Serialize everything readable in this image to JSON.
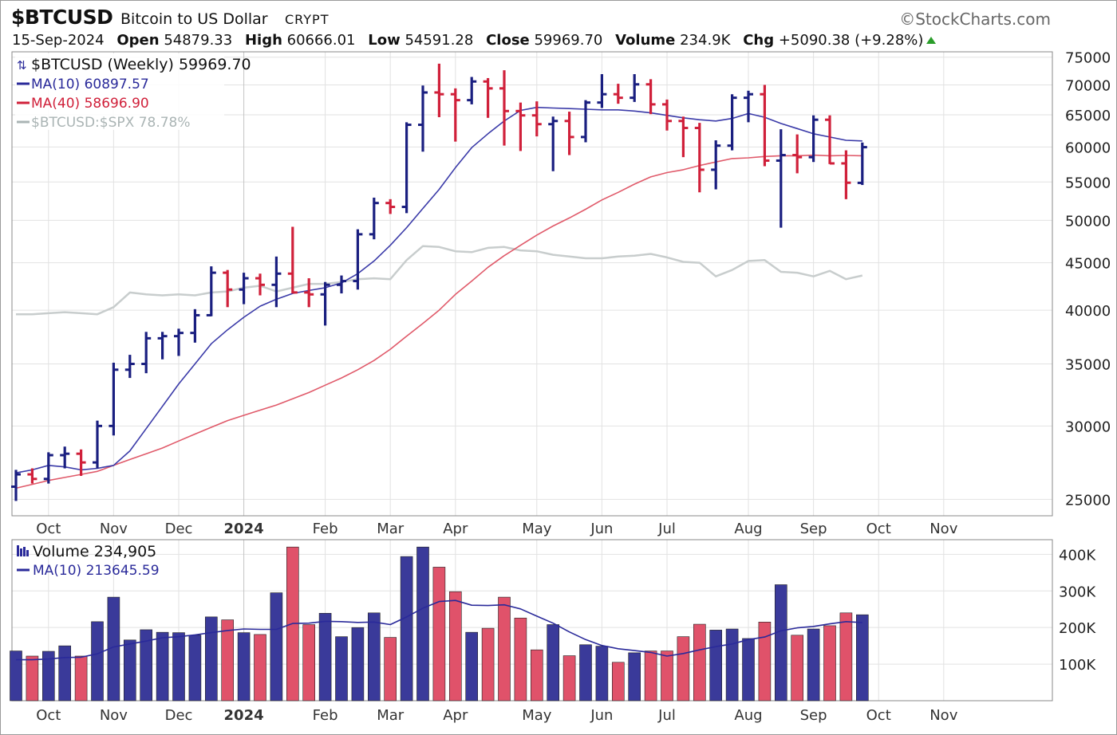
{
  "header": {
    "symbol": "$BTCUSD",
    "name": "Bitcoin to US Dollar",
    "exchange": "CRYPT",
    "brand": "©StockCharts.com",
    "date": "15-Sep-2024",
    "open_label": "Open",
    "open_value": "54879.33",
    "high_label": "High",
    "high_value": "60666.01",
    "low_label": "Low",
    "low_value": "54591.28",
    "close_label": "Close",
    "close_value": "59969.70",
    "volume_label": "Volume",
    "volume_value": "234.9K",
    "chg_label": "Chg",
    "chg_value": "+5090.38 (+9.28%)"
  },
  "colors": {
    "up": "#1a1f80",
    "down": "#d0203a",
    "ma10": "#3a3aa8",
    "ma40": "#e05a6a",
    "relative": "#c8cdcd",
    "vol_up": "#3a3a9a",
    "vol_down": "#e0526a",
    "grid": "#e2e2e2"
  },
  "chart_data": [
    {
      "type": "ohlc",
      "title": "$BTCUSD (Weekly) 59969.70",
      "price_scale": "log",
      "ylim": [
        24000,
        76000
      ],
      "yticks": [
        25000,
        30000,
        35000,
        40000,
        45000,
        50000,
        55000,
        60000,
        65000,
        70000,
        75000
      ],
      "grid": true,
      "legend_position": "top-left",
      "legend": [
        {
          "label": "$BTCUSD (Weekly) 59969.70",
          "color": "#111111"
        },
        {
          "label": "MA(10) 60897.57",
          "color": "#2a2a9a"
        },
        {
          "label": "MA(40) 58696.90",
          "color": "#d0203a"
        },
        {
          "label": "$BTCUSD:$SPX 78.78%",
          "color": "#aab4b4"
        }
      ],
      "x_labels": [
        {
          "label": "Oct",
          "week": 2
        },
        {
          "label": "Nov",
          "week": 6
        },
        {
          "label": "Dec",
          "week": 10
        },
        {
          "label": "2024",
          "week": 14,
          "bold": true
        },
        {
          "label": "Feb",
          "week": 19
        },
        {
          "label": "Mar",
          "week": 23
        },
        {
          "label": "Apr",
          "week": 27
        },
        {
          "label": "May",
          "week": 32
        },
        {
          "label": "Jun",
          "week": 36
        },
        {
          "label": "Jul",
          "week": 40
        },
        {
          "label": "Aug",
          "week": 45
        },
        {
          "label": "Sep",
          "week": 49
        },
        {
          "label": "Oct",
          "week": 53
        },
        {
          "label": "Nov",
          "week": 57
        }
      ],
      "ohlc": [
        [
          25800,
          26900,
          24900,
          26600
        ],
        [
          26600,
          27000,
          26000,
          26300
        ],
        [
          26300,
          28100,
          26000,
          27900
        ],
        [
          27900,
          28500,
          27000,
          28000
        ],
        [
          28000,
          28300,
          26500,
          27400
        ],
        [
          27400,
          30400,
          27000,
          30000
        ],
        [
          30000,
          35100,
          29300,
          34500
        ],
        [
          34500,
          35800,
          33800,
          35000
        ],
        [
          35000,
          37900,
          34200,
          37300
        ],
        [
          37300,
          37900,
          35400,
          37500
        ],
        [
          37500,
          38200,
          35700,
          37800
        ],
        [
          37800,
          40100,
          36900,
          39500
        ],
        [
          39500,
          44600,
          39400,
          43900
        ],
        [
          43900,
          44200,
          40300,
          42100
        ],
        [
          42100,
          43900,
          40600,
          43300
        ],
        [
          43300,
          43800,
          41500,
          42600
        ],
        [
          42600,
          45700,
          40300,
          43800
        ],
        [
          43800,
          49200,
          41700,
          41800
        ],
        [
          41800,
          43300,
          40300,
          41600
        ],
        [
          41600,
          42900,
          38500,
          42600
        ],
        [
          42600,
          43600,
          41700,
          43000
        ],
        [
          43000,
          48900,
          42100,
          48300
        ],
        [
          48300,
          52900,
          47700,
          52200
        ],
        [
          52200,
          52700,
          50800,
          51700
        ],
        [
          51700,
          63800,
          50900,
          63400
        ],
        [
          63400,
          69900,
          59300,
          68700
        ],
        [
          68700,
          73800,
          64600,
          68400
        ],
        [
          68400,
          69400,
          60800,
          67400
        ],
        [
          67400,
          71400,
          66700,
          70600
        ],
        [
          70600,
          71200,
          64500,
          69400
        ],
        [
          69400,
          72600,
          60200,
          65600
        ],
        [
          65600,
          67000,
          59400,
          64900
        ],
        [
          64900,
          67200,
          61600,
          63500
        ],
        [
          63500,
          64700,
          56500,
          64000
        ],
        [
          64000,
          65500,
          58800,
          61500
        ],
        [
          61500,
          67400,
          60700,
          67000
        ],
        [
          67000,
          71900,
          66100,
          68400
        ],
        [
          68400,
          70200,
          66800,
          67800
        ],
        [
          67800,
          71900,
          67100,
          70100
        ],
        [
          70100,
          71000,
          65100,
          66700
        ],
        [
          66700,
          67500,
          62500,
          64000
        ],
        [
          64000,
          64700,
          58500,
          62900
        ],
        [
          62900,
          63700,
          53600,
          56700
        ],
        [
          56700,
          61000,
          54000,
          60200
        ],
        [
          60200,
          68400,
          59500,
          67800
        ],
        [
          67800,
          69000,
          63800,
          68400
        ],
        [
          68400,
          70000,
          57200,
          58000
        ],
        [
          58000,
          62700,
          49100,
          58800
        ],
        [
          58800,
          61900,
          56200,
          58500
        ],
        [
          58500,
          64900,
          57800,
          64200
        ],
        [
          64200,
          64900,
          57500,
          57600
        ],
        [
          57600,
          59500,
          52700,
          54900
        ],
        [
          54879.33,
          60666.01,
          54591.28,
          59969.7
        ]
      ],
      "ma10": [
        26700,
        26900,
        27200,
        27100,
        26900,
        27000,
        27200,
        28200,
        29800,
        31500,
        33300,
        35000,
        36800,
        38100,
        39300,
        40400,
        41100,
        41700,
        42000,
        42300,
        42800,
        43800,
        45200,
        47000,
        49100,
        51500,
        54000,
        57000,
        59900,
        62000,
        64000,
        65700,
        66200,
        66100,
        66000,
        65900,
        65800,
        65800,
        65600,
        65300,
        64900,
        64500,
        64200,
        64000,
        64400,
        65200,
        64600,
        63600,
        62800,
        62000,
        61500,
        61000,
        60900
      ],
      "ma40": [
        25700,
        25950,
        26200,
        26400,
        26600,
        26800,
        27200,
        27600,
        28000,
        28400,
        28900,
        29400,
        29900,
        30400,
        30800,
        31200,
        31600,
        32100,
        32600,
        33200,
        33800,
        34500,
        35300,
        36300,
        37500,
        38700,
        40000,
        41600,
        43000,
        44500,
        45800,
        47000,
        48200,
        49300,
        50300,
        51400,
        52600,
        53600,
        54700,
        55700,
        56300,
        56700,
        57300,
        57800,
        58300,
        58400,
        58600,
        58700,
        58700,
        58800,
        58700,
        58750,
        58696.9
      ],
      "relative": [
        39600,
        39600,
        39700,
        39800,
        39700,
        39600,
        40300,
        41800,
        41600,
        41500,
        41600,
        41500,
        41800,
        41900,
        42300,
        42500,
        41900,
        42300,
        42700,
        42700,
        42900,
        43200,
        43300,
        43200,
        45300,
        46900,
        46800,
        46300,
        46200,
        46700,
        46800,
        46400,
        46300,
        45900,
        45700,
        45500,
        45500,
        45700,
        45800,
        46000,
        45600,
        45100,
        45000,
        43500,
        44200,
        45200,
        45300,
        44000,
        43900,
        43500,
        44100,
        43200,
        43600
      ]
    },
    {
      "type": "bar",
      "title": "Volume 234,905",
      "ylim": [
        0,
        440
      ],
      "yunit": "K",
      "yticks": [
        100,
        200,
        300,
        400
      ],
      "yticklabels": [
        "100K",
        "200K",
        "300K",
        "400K"
      ],
      "legend_position": "top-left",
      "legend": [
        {
          "label": "Volume 234,905",
          "color": "#111111"
        },
        {
          "label": "MA(10) 213645.59",
          "color": "#2a2a9a"
        }
      ],
      "values": [
        136,
        122,
        135,
        150,
        122,
        216,
        283,
        166,
        194,
        187,
        186,
        179,
        229,
        221,
        186,
        181,
        295,
        420,
        208,
        239,
        175,
        200,
        240,
        173,
        394,
        420,
        365,
        298,
        187,
        198,
        283,
        226,
        139,
        208,
        123,
        153,
        149,
        105,
        131,
        136,
        136,
        175,
        209,
        193,
        196,
        170,
        215,
        317,
        179,
        196,
        205,
        240,
        234.905
      ],
      "ma10": [
        112,
        112,
        114,
        118,
        119,
        128,
        147,
        155,
        163,
        172,
        175,
        180,
        186,
        192,
        196,
        195,
        195,
        211,
        212,
        217,
        216,
        214,
        215,
        208,
        229,
        253,
        271,
        274,
        261,
        260,
        262,
        251,
        231,
        212,
        188,
        167,
        151,
        142,
        137,
        132,
        122,
        129,
        139,
        148,
        155,
        167,
        174,
        191,
        199,
        203,
        210,
        216,
        213.64559
      ]
    }
  ]
}
